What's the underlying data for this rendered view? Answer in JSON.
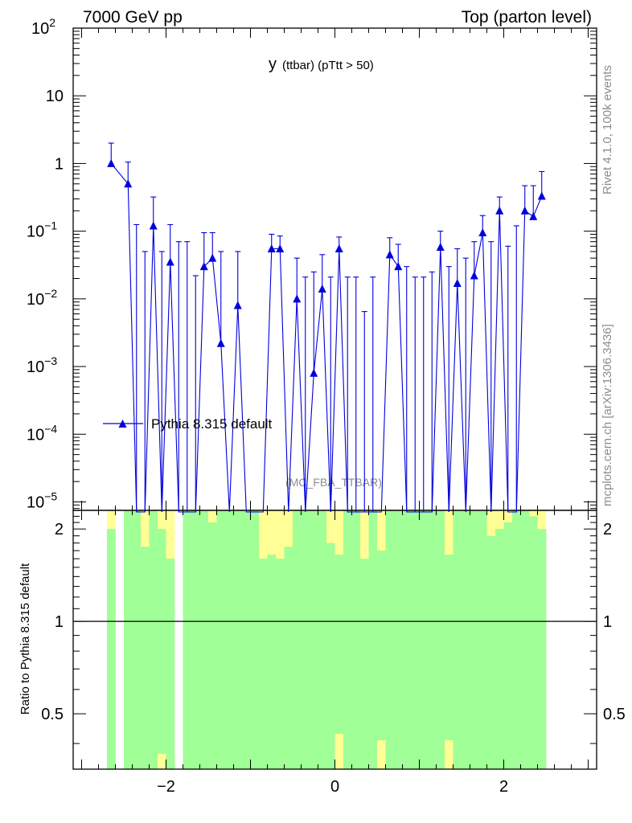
{
  "header": {
    "left": "7000 GeV pp",
    "right": "Top (parton level)"
  },
  "title": {
    "main": "y",
    "sub": "(ttbar)  (pTtt > 50)"
  },
  "side_labels": {
    "rivet": "Rivet 4.1.0,  100k events",
    "mcplots": "mcplots.cern.ch [arXiv:1306.3436]"
  },
  "watermark": "(MC_FBA_TTBAR)",
  "ratio_ylabel": "Ratio to Pythia 8.315 default",
  "colors": {
    "series": "#0000dd",
    "band_inner": "#a0ff96",
    "band_outer": "#ffff96"
  },
  "chart_data": [
    {
      "type": "scatter",
      "xlim": [
        -3.1,
        3.1
      ],
      "ylim": [
        7.5e-06,
        100
      ],
      "yscale": "log",
      "y_ticks": [
        {
          "value": 1e-05,
          "label": "10",
          "exp": "−5"
        },
        {
          "value": 0.0001,
          "label": "10",
          "exp": "−4"
        },
        {
          "value": 0.001,
          "label": "10",
          "exp": "−3"
        },
        {
          "value": 0.01,
          "label": "10",
          "exp": "−2"
        },
        {
          "value": 0.1,
          "label": "10",
          "exp": "−1"
        },
        {
          "value": 1,
          "label": "1",
          "exp": ""
        },
        {
          "value": 10,
          "label": "10",
          "exp": ""
        },
        {
          "value": 100,
          "label": "10",
          "exp": "2"
        }
      ],
      "legend": {
        "label": "Pythia 8.315 default",
        "position": "lower-left"
      },
      "series": [
        {
          "name": "Pythia 8.315 default",
          "x": [
            -2.65,
            -2.45,
            -2.35,
            -2.25,
            -2.15,
            -2.05,
            -1.95,
            -1.85,
            -1.75,
            -1.65,
            -1.55,
            -1.45,
            -1.35,
            -1.25,
            -1.15,
            -1.05,
            -0.95,
            -0.85,
            -0.75,
            -0.65,
            -0.55,
            -0.45,
            -0.35,
            -0.25,
            -0.15,
            -0.05,
            0.05,
            0.15,
            0.25,
            0.35,
            0.45,
            0.55,
            0.65,
            0.75,
            0.85,
            0.95,
            1.05,
            1.15,
            1.25,
            1.35,
            1.45,
            1.55,
            1.65,
            1.75,
            1.85,
            1.95,
            2.05,
            2.15,
            2.25,
            2.35,
            2.45
          ],
          "y": [
            1.0,
            0.5,
            0,
            0,
            0.12,
            0,
            0.035,
            0,
            0,
            0,
            0.03,
            0.04,
            0.0022,
            0,
            0.008,
            0,
            0,
            0,
            0.055,
            0.055,
            0,
            0.01,
            0,
            0.0008,
            0.014,
            0,
            0.055,
            0,
            0,
            0,
            0,
            0,
            0.045,
            0.03,
            0,
            0,
            0,
            0,
            0.058,
            0,
            0.017,
            0,
            0.022,
            0.095,
            0,
            0.2,
            0,
            0,
            0.2,
            0.165,
            0.33
          ],
          "yerr_up": [
            2.0,
            1.05,
            0.125,
            0.05,
            0.32,
            0.05,
            0.125,
            0.07,
            0.07,
            0.022,
            0.095,
            0.095,
            0.05,
            0,
            0.05,
            0,
            0,
            0,
            0.09,
            0.085,
            0,
            0.04,
            0.021,
            0.025,
            0.045,
            0.021,
            0.082,
            0.021,
            0.021,
            0.0065,
            0.021,
            0,
            0.08,
            0.064,
            0.03,
            0.021,
            0.021,
            0.025,
            0.1,
            0.03,
            0.055,
            0.04,
            0.07,
            0.17,
            0.07,
            0.32,
            0.06,
            0.12,
            0.47,
            0.47,
            0.76
          ]
        }
      ]
    },
    {
      "type": "area",
      "ylabel": "Ratio to Pythia 8.315 default",
      "xlim": [
        -3.1,
        3.1
      ],
      "ylim": [
        0.33,
        2.3
      ],
      "yscale": "log",
      "y_ticks": [
        0.5,
        1,
        2
      ],
      "x_ticks": [
        -2,
        0,
        2
      ],
      "x_tick_labels": [
        "−2",
        "0",
        "2"
      ],
      "reference_line": 1,
      "bin_edges": [
        -2.7,
        -2.6,
        -2.5,
        -2.4,
        -2.3,
        -2.2,
        -2.1,
        -2.0,
        -1.9,
        -1.8,
        -1.7,
        -1.6,
        -1.5,
        -1.4,
        -1.3,
        -1.2,
        -1.1,
        -1.0,
        -0.9,
        -0.8,
        -0.7,
        -0.6,
        -0.5,
        -0.4,
        -0.3,
        -0.2,
        -0.1,
        0.0,
        0.1,
        0.2,
        0.3,
        0.4,
        0.5,
        0.6,
        0.7,
        0.8,
        0.9,
        1.0,
        1.1,
        1.2,
        1.3,
        1.4,
        1.5,
        1.6,
        1.7,
        1.8,
        1.9,
        2.0,
        2.1,
        2.2,
        2.3,
        2.4,
        2.5
      ],
      "outer_hi": [
        2.3,
        0,
        2.3,
        2.3,
        2.3,
        2.3,
        2.3,
        2.3,
        0,
        2.3,
        2.3,
        2.3,
        2.3,
        2.3,
        2.3,
        2.3,
        2.3,
        2.3,
        2.3,
        2.3,
        2.3,
        2.3,
        2.3,
        2.3,
        2.3,
        2.3,
        2.3,
        2.3,
        2.3,
        2.3,
        2.3,
        2.3,
        2.3,
        2.3,
        2.3,
        2.3,
        2.3,
        2.3,
        2.3,
        2.3,
        2.3,
        2.3,
        2.3,
        2.3,
        2.3,
        2.3,
        2.3,
        2.3,
        2.3,
        2.3,
        2.3,
        2.3
      ],
      "inner_hi": [
        2.0,
        0,
        2.3,
        2.3,
        1.75,
        2.3,
        2.0,
        1.6,
        0,
        2.3,
        2.3,
        2.3,
        2.1,
        2.3,
        2.3,
        2.3,
        2.3,
        2.3,
        1.6,
        1.65,
        1.6,
        1.75,
        2.3,
        2.3,
        2.3,
        2.3,
        1.8,
        1.65,
        2.3,
        2.3,
        1.6,
        2.3,
        1.7,
        2.3,
        2.3,
        2.3,
        2.3,
        2.3,
        2.3,
        2.3,
        1.65,
        2.3,
        2.3,
        2.3,
        2.3,
        1.9,
        2.0,
        2.1,
        2.3,
        2.3,
        2.2,
        2.0
      ],
      "inner_lo": [
        0.33,
        0,
        0.33,
        0.33,
        0.33,
        0.33,
        0.37,
        0.33,
        0,
        0.33,
        0.33,
        0.33,
        0.33,
        0.33,
        0.33,
        0.33,
        0.33,
        0.33,
        0.33,
        0.33,
        0.33,
        0.33,
        0.33,
        0.33,
        0.33,
        0.33,
        0.33,
        0.43,
        0.33,
        0.33,
        0.33,
        0.33,
        0.41,
        0.33,
        0.33,
        0.33,
        0.33,
        0.33,
        0.33,
        0.33,
        0.41,
        0.33,
        0.33,
        0.33,
        0.33,
        0.33,
        0.33,
        0.33,
        0.33,
        0.33,
        0.33,
        0.33
      ],
      "outer_lo": [
        0.33,
        0,
        0.33,
        0.33,
        0.33,
        0.33,
        0.33,
        0.33,
        0,
        0.33,
        0.33,
        0.33,
        0.33,
        0.33,
        0.33,
        0.33,
        0.33,
        0.33,
        0.33,
        0.33,
        0.33,
        0.33,
        0.33,
        0.33,
        0.33,
        0.33,
        0.33,
        0.33,
        0.33,
        0.33,
        0.33,
        0.33,
        0.33,
        0.33,
        0.33,
        0.33,
        0.33,
        0.33,
        0.33,
        0.33,
        0.33,
        0.33,
        0.33,
        0.33,
        0.33,
        0.33,
        0.33,
        0.33,
        0.33,
        0.33,
        0.33,
        0.33
      ]
    }
  ]
}
